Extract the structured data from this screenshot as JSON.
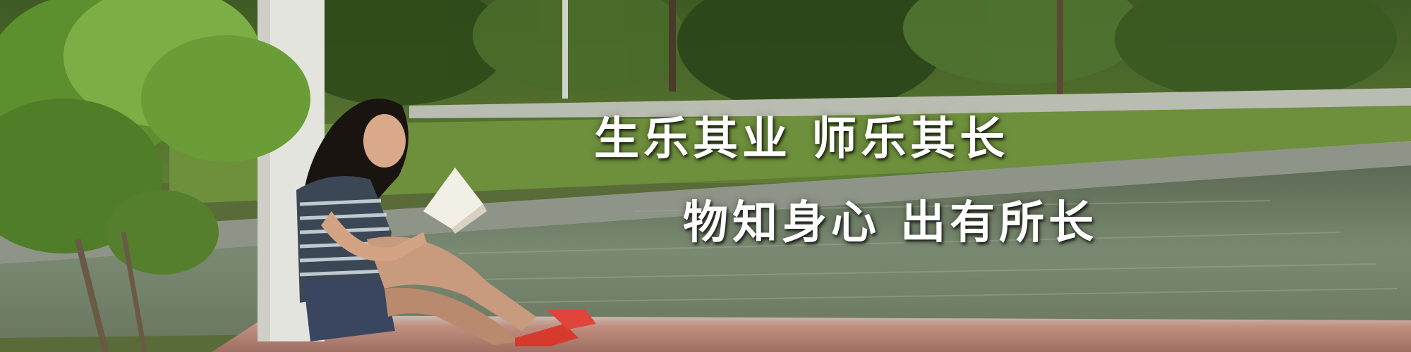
{
  "banner": {
    "slogan_line1": "生乐其业  师乐其长",
    "slogan_line2": "物知身心  出有所长",
    "scene_description_colors": {
      "foliage_dark": "#2f4a1c",
      "foliage_light": "#7fa84a",
      "water": "#6f7f6a",
      "pavement": "#b98c7c",
      "pillar": "#e6e6e0"
    }
  }
}
